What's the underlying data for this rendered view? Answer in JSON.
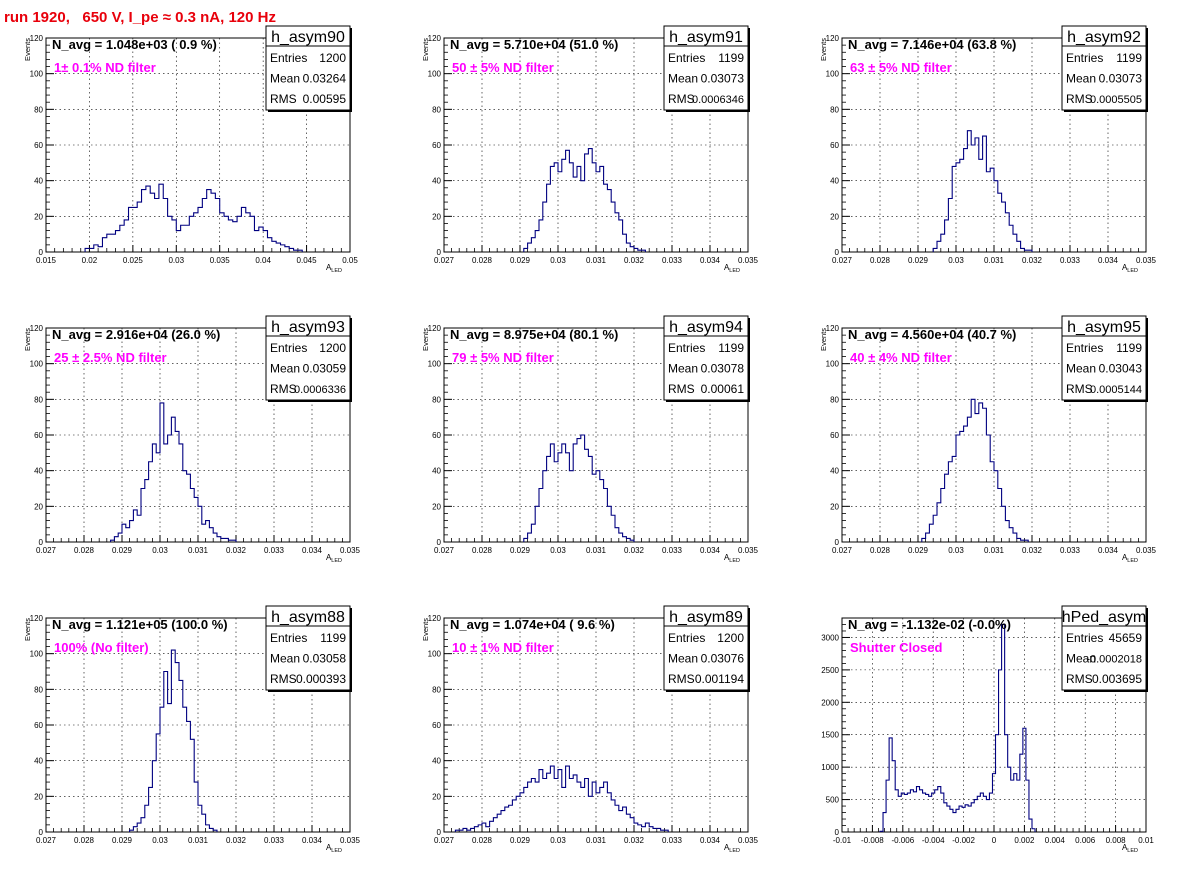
{
  "canvas_title": "run 1920,   650 V, I_pe ≈ 0.3 nA, 120 Hz",
  "colors": {
    "hist": "#000080",
    "annotation": "#ff00ff",
    "title": "#e8000b"
  },
  "chart_data": [
    {
      "type": "bar",
      "name": "h_asym90",
      "navg": "N_avg = 1.048e+03 ( 0.9 %)",
      "annotation": "1± 0.1% ND filter",
      "stats": [
        [
          "Entries",
          "1200"
        ],
        [
          "Mean",
          "0.03264"
        ],
        [
          "RMS",
          "0.00595"
        ]
      ],
      "xlim": [
        0.015,
        0.05
      ],
      "ylim": [
        0,
        120
      ],
      "xticks": [
        0.015,
        0.02,
        0.025,
        0.03,
        0.035,
        0.04,
        0.045,
        0.05
      ],
      "xtick_labels": [
        "0.015",
        "0.02",
        "0.025",
        "0.03",
        "0.035",
        "0.04",
        "0.045",
        "0.05"
      ],
      "yticks": [
        0,
        20,
        40,
        60,
        80,
        100,
        120
      ],
      "ytick_labels": [
        "0",
        "20",
        "40",
        "60",
        "80",
        "100",
        "120"
      ],
      "xlabel": "A_LED",
      "ylabel": "Events",
      "x_start": 0.0195,
      "bin_width": 0.0005,
      "values": [
        2,
        2,
        4,
        3,
        8,
        10,
        10,
        12,
        15,
        18,
        25,
        25,
        28,
        35,
        37,
        33,
        30,
        38,
        30,
        20,
        18,
        12,
        15,
        15,
        20,
        22,
        25,
        30,
        35,
        33,
        30,
        22,
        20,
        18,
        17,
        20,
        25,
        22,
        20,
        12,
        14,
        12,
        8,
        6,
        5,
        4,
        3,
        2,
        1,
        1
      ]
    },
    {
      "type": "bar",
      "name": "h_asym91",
      "navg": "N_avg = 5.710e+04 (51.0 %)",
      "annotation": "50 ± 5% ND filter",
      "stats": [
        [
          "Entries",
          "1199"
        ],
        [
          "Mean",
          "0.03073"
        ],
        [
          "RMS",
          "0.0006346"
        ]
      ],
      "xlim": [
        0.027,
        0.035
      ],
      "ylim": [
        0,
        120
      ],
      "xticks": [
        0.027,
        0.028,
        0.029,
        0.03,
        0.031,
        0.032,
        0.033,
        0.034,
        0.035
      ],
      "xtick_labels": [
        "0.027",
        "0.028",
        "0.029",
        "0.03",
        "0.031",
        "0.032",
        "0.033",
        "0.034",
        "0.035"
      ],
      "yticks": [
        0,
        20,
        40,
        60,
        80,
        100,
        120
      ],
      "ytick_labels": [
        "0",
        "20",
        "40",
        "60",
        "80",
        "100",
        "120"
      ],
      "xlabel": "A_LED",
      "ylabel": "Events",
      "x_start": 0.0291,
      "bin_width": 0.0001,
      "values": [
        2,
        5,
        8,
        12,
        18,
        28,
        38,
        48,
        50,
        45,
        52,
        57,
        50,
        42,
        48,
        40,
        55,
        58,
        50,
        45,
        48,
        38,
        35,
        28,
        22,
        18,
        10,
        5,
        3,
        2,
        1,
        1
      ]
    },
    {
      "type": "bar",
      "name": "h_asym92",
      "navg": "N_avg = 7.146e+04 (63.8 %)",
      "annotation": "63 ± 5% ND filter",
      "stats": [
        [
          "Entries",
          "1199"
        ],
        [
          "Mean",
          "0.03073"
        ],
        [
          "RMS",
          "0.0005505"
        ]
      ],
      "xlim": [
        0.027,
        0.035
      ],
      "ylim": [
        0,
        120
      ],
      "xticks": [
        0.027,
        0.028,
        0.029,
        0.03,
        0.031,
        0.032,
        0.033,
        0.034,
        0.035
      ],
      "xtick_labels": [
        "0.027",
        "0.028",
        "0.029",
        "0.03",
        "0.031",
        "0.032",
        "0.033",
        "0.034",
        "0.035"
      ],
      "yticks": [
        0,
        20,
        40,
        60,
        80,
        100,
        120
      ],
      "ytick_labels": [
        "0",
        "20",
        "40",
        "60",
        "80",
        "100",
        "120"
      ],
      "xlabel": "A_LED",
      "ylabel": "Events",
      "x_start": 0.0294,
      "bin_width": 0.0001,
      "values": [
        2,
        6,
        10,
        18,
        30,
        48,
        50,
        52,
        58,
        68,
        60,
        64,
        52,
        65,
        45,
        47,
        40,
        33,
        28,
        22,
        15,
        10,
        6,
        2,
        1,
        1
      ]
    },
    {
      "type": "bar",
      "name": "h_asym93",
      "navg": "N_avg = 2.916e+04 (26.0 %)",
      "annotation": "25 ± 2.5% ND filter",
      "stats": [
        [
          "Entries",
          "1200"
        ],
        [
          "Mean",
          "0.03059"
        ],
        [
          "RMS",
          "0.0006336"
        ]
      ],
      "xlim": [
        0.027,
        0.035
      ],
      "ylim": [
        0,
        120
      ],
      "xticks": [
        0.027,
        0.028,
        0.029,
        0.03,
        0.031,
        0.032,
        0.033,
        0.034,
        0.035
      ],
      "xtick_labels": [
        "0.027",
        "0.028",
        "0.029",
        "0.03",
        "0.031",
        "0.032",
        "0.033",
        "0.034",
        "0.035"
      ],
      "yticks": [
        0,
        20,
        40,
        60,
        80,
        100,
        120
      ],
      "ytick_labels": [
        "0",
        "20",
        "40",
        "60",
        "80",
        "100",
        "120"
      ],
      "xlabel": "A_LED",
      "ylabel": "Events",
      "x_start": 0.0287,
      "bin_width": 0.0001,
      "values": [
        1,
        3,
        5,
        10,
        8,
        12,
        18,
        15,
        30,
        35,
        45,
        55,
        50,
        78,
        55,
        60,
        70,
        62,
        55,
        40,
        38,
        30,
        25,
        20,
        10,
        12,
        8,
        5,
        3,
        2,
        2,
        1,
        1
      ]
    },
    {
      "type": "bar",
      "name": "h_asym94",
      "navg": "N_avg = 8.975e+04 (80.1 %)",
      "annotation": "79 ± 5% ND filter",
      "stats": [
        [
          "Entries",
          "1199"
        ],
        [
          "Mean",
          "0.03078"
        ],
        [
          "RMS",
          "0.00061"
        ]
      ],
      "xlim": [
        0.027,
        0.035
      ],
      "ylim": [
        0,
        120
      ],
      "xticks": [
        0.027,
        0.028,
        0.029,
        0.03,
        0.031,
        0.032,
        0.033,
        0.034,
        0.035
      ],
      "xtick_labels": [
        "0.027",
        "0.028",
        "0.029",
        "0.03",
        "0.031",
        "0.032",
        "0.033",
        "0.034",
        "0.035"
      ],
      "yticks": [
        0,
        20,
        40,
        60,
        80,
        100,
        120
      ],
      "ytick_labels": [
        "0",
        "20",
        "40",
        "60",
        "80",
        "100",
        "120"
      ],
      "xlabel": "A_LED",
      "ylabel": "Events",
      "x_start": 0.0291,
      "bin_width": 0.0001,
      "values": [
        2,
        5,
        10,
        20,
        30,
        40,
        48,
        55,
        45,
        50,
        55,
        50,
        40,
        55,
        58,
        60,
        52,
        48,
        38,
        40,
        35,
        30,
        20,
        15,
        8,
        5,
        3,
        2,
        1
      ]
    },
    {
      "type": "bar",
      "name": "h_asym95",
      "navg": "N_avg = 4.560e+04 (40.7 %)",
      "annotation": "40 ± 4% ND filter",
      "stats": [
        [
          "Entries",
          "1199"
        ],
        [
          "Mean",
          "0.03043"
        ],
        [
          "RMS",
          "0.0005144"
        ]
      ],
      "xlim": [
        0.027,
        0.035
      ],
      "ylim": [
        0,
        120
      ],
      "xticks": [
        0.027,
        0.028,
        0.029,
        0.03,
        0.031,
        0.032,
        0.033,
        0.034,
        0.035
      ],
      "xtick_labels": [
        "0.027",
        "0.028",
        "0.029",
        "0.03",
        "0.031",
        "0.032",
        "0.033",
        "0.034",
        "0.035"
      ],
      "yticks": [
        0,
        20,
        40,
        60,
        80,
        100,
        120
      ],
      "ytick_labels": [
        "0",
        "20",
        "40",
        "60",
        "80",
        "100",
        "120"
      ],
      "xlabel": "A_LED",
      "ylabel": "Events",
      "x_start": 0.0291,
      "bin_width": 0.0001,
      "values": [
        2,
        5,
        10,
        15,
        22,
        30,
        38,
        45,
        48,
        60,
        62,
        65,
        70,
        80,
        72,
        78,
        75,
        60,
        45,
        40,
        30,
        20,
        12,
        8,
        5,
        2,
        1,
        1
      ]
    },
    {
      "type": "bar",
      "name": "h_asym88",
      "navg": "N_avg = 1.121e+05 (100.0 %)",
      "annotation": "100% (No filter)",
      "stats": [
        [
          "Entries",
          "1199"
        ],
        [
          "Mean",
          "0.03058"
        ],
        [
          "RMS",
          "0.000393"
        ]
      ],
      "xlim": [
        0.027,
        0.035
      ],
      "ylim": [
        0,
        120
      ],
      "xticks": [
        0.027,
        0.028,
        0.029,
        0.03,
        0.031,
        0.032,
        0.033,
        0.034,
        0.035
      ],
      "xtick_labels": [
        "0.027",
        "0.028",
        "0.029",
        "0.03",
        "0.031",
        "0.032",
        "0.033",
        "0.034",
        "0.035"
      ],
      "yticks": [
        0,
        20,
        40,
        60,
        80,
        100,
        120
      ],
      "ytick_labels": [
        "0",
        "20",
        "40",
        "60",
        "80",
        "100",
        "120"
      ],
      "xlabel": "A_LED",
      "ylabel": "Events",
      "x_start": 0.0292,
      "bin_width": 0.0001,
      "values": [
        1,
        3,
        5,
        8,
        15,
        25,
        40,
        55,
        70,
        90,
        72,
        102,
        95,
        85,
        70,
        62,
        52,
        28,
        15,
        10,
        4,
        2,
        1
      ]
    },
    {
      "type": "bar",
      "name": "h_asym89",
      "navg": "N_avg = 1.074e+04 ( 9.6 %)",
      "annotation": "10 ± 1% ND filter",
      "stats": [
        [
          "Entries",
          "1200"
        ],
        [
          "Mean",
          "0.03076"
        ],
        [
          "RMS",
          "0.001194"
        ]
      ],
      "xlim": [
        0.027,
        0.035
      ],
      "ylim": [
        0,
        120
      ],
      "xticks": [
        0.027,
        0.028,
        0.029,
        0.03,
        0.031,
        0.032,
        0.033,
        0.034,
        0.035
      ],
      "xtick_labels": [
        "0.027",
        "0.028",
        "0.029",
        "0.03",
        "0.031",
        "0.032",
        "0.033",
        "0.034",
        "0.035"
      ],
      "yticks": [
        0,
        20,
        40,
        60,
        80,
        100,
        120
      ],
      "ytick_labels": [
        "0",
        "20",
        "40",
        "60",
        "80",
        "100",
        "120"
      ],
      "xlabel": "A_LED",
      "ylabel": "Events",
      "x_start": 0.0273,
      "bin_width": 0.0001,
      "values": [
        1,
        1,
        2,
        1,
        2,
        3,
        4,
        5,
        3,
        6,
        8,
        10,
        12,
        14,
        15,
        18,
        20,
        22,
        25,
        28,
        30,
        28,
        35,
        30,
        33,
        37,
        30,
        35,
        25,
        37,
        30,
        32,
        28,
        25,
        30,
        20,
        28,
        22,
        25,
        28,
        22,
        18,
        15,
        12,
        14,
        10,
        8,
        5,
        4,
        3,
        5,
        3,
        2,
        2,
        1,
        1
      ]
    },
    {
      "type": "bar",
      "name": "hPed_asym",
      "navg": "N_avg = -1.132e-02 (-0.0%)",
      "annotation": "Shutter Closed",
      "stats": [
        [
          "Entries",
          "45659"
        ],
        [
          "Mean",
          "-0.0002018"
        ],
        [
          "RMS",
          "0.003695"
        ]
      ],
      "xlim": [
        -0.01,
        0.01
      ],
      "ylim": [
        0,
        3300
      ],
      "xticks": [
        -0.01,
        -0.008,
        -0.006,
        -0.004,
        -0.002,
        0,
        0.002,
        0.004,
        0.006,
        0.008,
        0.01
      ],
      "xtick_labels": [
        "-0.01",
        "-0.008",
        "-0.006",
        "-0.004",
        "-0.002",
        "0",
        "0.002",
        "0.004",
        "0.006",
        "0.008",
        "0.01"
      ],
      "yticks": [
        0,
        500,
        1000,
        1500,
        2000,
        2500,
        3000
      ],
      "ytick_labels": [
        "0",
        "500",
        "1000",
        "1500",
        "2000",
        "2500",
        "3000"
      ],
      "xlabel": "A_LED",
      "ylabel": "",
      "x_start": -0.0075,
      "bin_width": 0.0002,
      "values": [
        10,
        300,
        800,
        1450,
        1100,
        650,
        550,
        600,
        580,
        600,
        650,
        620,
        700,
        650,
        600,
        580,
        550,
        600,
        650,
        700,
        600,
        450,
        400,
        350,
        300,
        350,
        400,
        380,
        420,
        400,
        450,
        500,
        550,
        600,
        550,
        500,
        600,
        900,
        1500,
        2500,
        3200,
        1500,
        1000,
        800,
        900,
        800,
        1200,
        1600,
        800,
        200,
        50
      ]
    }
  ]
}
